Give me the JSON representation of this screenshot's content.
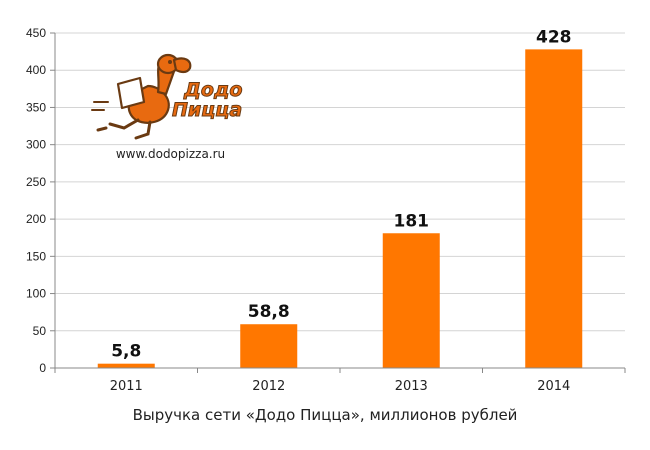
{
  "caption": "Выручка сети «Додо Пицца», миллионов рублей",
  "logo": {
    "brand_line1": "Додо",
    "brand_line2": "Пицца",
    "url": "www.dodopizza.ru",
    "accent_color": "#e86a10",
    "dark_color": "#6a3a12"
  },
  "chart_data": {
    "type": "bar",
    "title": "",
    "xlabel": "",
    "ylabel": "",
    "categories": [
      "2011",
      "2012",
      "2013",
      "2014"
    ],
    "values": [
      5.8,
      58.8,
      181,
      428
    ],
    "data_labels": [
      "5,8",
      "58,8",
      "181",
      "428"
    ],
    "ylim": [
      0,
      450
    ],
    "yticks": [
      0,
      50,
      100,
      150,
      200,
      250,
      300,
      350,
      400,
      450
    ],
    "grid": true,
    "legend": "none",
    "bar_color": "#ff7700"
  }
}
